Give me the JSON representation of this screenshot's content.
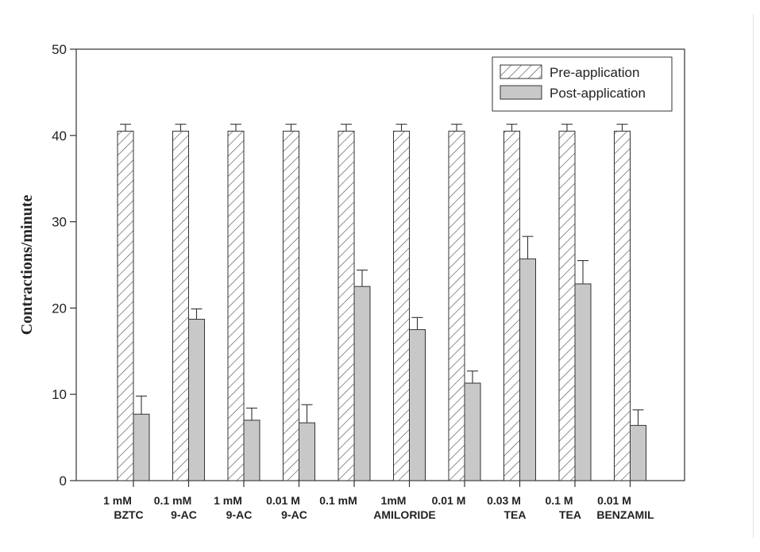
{
  "chart_data": {
    "type": "bar",
    "ylabel": "Contractions/minute",
    "xlabel": "",
    "ylim": [
      0,
      50
    ],
    "yticks": [
      0,
      10,
      20,
      30,
      40,
      50
    ],
    "grid": false,
    "legend_position": "top-right",
    "categories": [
      [
        "1 mM",
        "BZTC"
      ],
      [
        "0.1 mM",
        "9-AC"
      ],
      [
        "1 mM",
        "9-AC"
      ],
      [
        "0.01 M",
        "9-AC"
      ],
      [
        "0.1 mM",
        ""
      ],
      [
        "1mM",
        "AMILORIDE"
      ],
      [
        "0.01 M",
        ""
      ],
      [
        "0.03 M",
        "TEA"
      ],
      [
        "0.1 M",
        "TEA"
      ],
      [
        "0.01 M",
        "BENZAMIL"
      ]
    ],
    "series": [
      {
        "name": "Pre-application",
        "pattern": "hatched",
        "color": "#ffffff",
        "values": [
          40.5,
          40.5,
          40.5,
          40.5,
          40.5,
          40.5,
          40.5,
          40.5,
          40.5,
          40.5
        ],
        "errors": [
          0.8,
          0.8,
          0.8,
          0.8,
          0.8,
          0.8,
          0.8,
          0.8,
          0.8,
          0.8
        ]
      },
      {
        "name": "Post-application",
        "pattern": "solid",
        "color": "#c8c8c8",
        "values": [
          7.7,
          18.7,
          7.0,
          6.7,
          22.5,
          17.5,
          11.3,
          25.7,
          22.8,
          6.4
        ],
        "errors": [
          2.1,
          1.2,
          1.4,
          2.1,
          1.9,
          1.4,
          1.4,
          2.6,
          2.7,
          1.8
        ]
      }
    ]
  }
}
